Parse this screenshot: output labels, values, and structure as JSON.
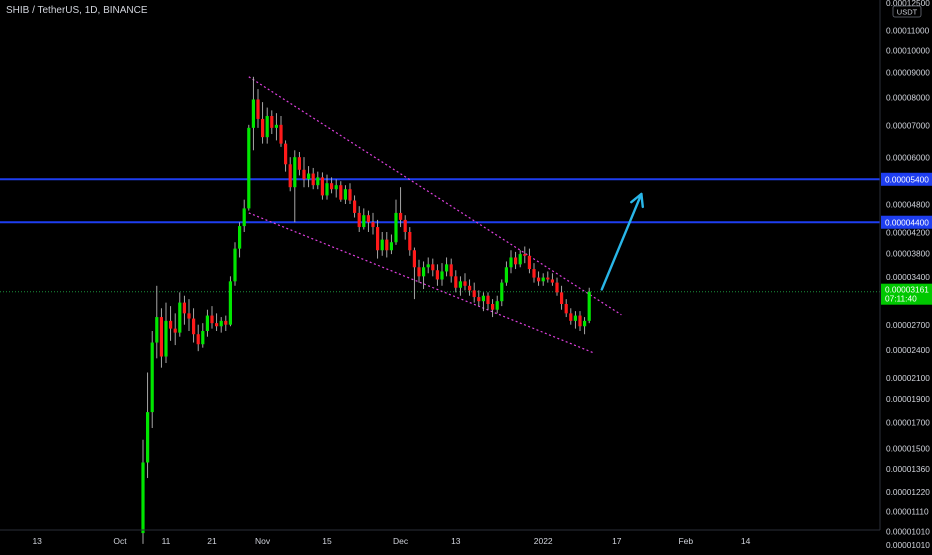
{
  "header": {
    "title": "SHIB / TetherUS, 1D, BINANCE"
  },
  "price_axis": {
    "unit_badge": "USDT",
    "top_partial_label": "0.00012500",
    "ticks": [
      {
        "label": "0.00011000",
        "value": 0.00011
      },
      {
        "label": "0.00010000",
        "value": 0.0001
      },
      {
        "label": "0.00009000",
        "value": 9e-05
      },
      {
        "label": "0.00008000",
        "value": 8e-05
      },
      {
        "label": "0.00007000",
        "value": 7e-05
      },
      {
        "label": "0.00006000",
        "value": 6e-05
      },
      {
        "label": "0.00004800",
        "value": 4.8e-05
      },
      {
        "label": "0.00004200",
        "value": 4.2e-05
      },
      {
        "label": "0.00003800",
        "value": 3.8e-05
      },
      {
        "label": "0.00003400",
        "value": 3.4e-05
      },
      {
        "label": "0.00002700",
        "value": 2.7e-05
      },
      {
        "label": "0.00002400",
        "value": 2.4e-05
      },
      {
        "label": "0.00002100",
        "value": 2.1e-05
      },
      {
        "label": "0.00001900",
        "value": 1.9e-05
      },
      {
        "label": "0.00001700",
        "value": 1.7e-05
      },
      {
        "label": "0.00001500",
        "value": 1.5e-05
      },
      {
        "label": "0.00001360",
        "value": 1.36e-05
      },
      {
        "label": "0.00001220",
        "value": 1.22e-05
      },
      {
        "label": "0.00001110",
        "value": 1.11e-05
      },
      {
        "label": "0.00001010",
        "value": 1.01e-05
      }
    ],
    "bottom_partial_label": "0.00001010"
  },
  "time_axis": {
    "labels": [
      "13",
      "Oct",
      "11",
      "21",
      "Nov",
      "15",
      "Dec",
      "13",
      "2022",
      "17",
      "Feb",
      "14"
    ]
  },
  "colors": {
    "background": "#000000",
    "up": "#00e600",
    "down": "#ff1a1a",
    "wick": "#b8b8b8",
    "level_line": "#1e3ef0",
    "channel": "#e040e0",
    "arrow": "#29b6e8",
    "price_line": "#1a8f3a",
    "current_badge": "#00c800",
    "axis_text": "#d1d4dc"
  },
  "chart_data": {
    "type": "candlestick",
    "title": "SHIB / TetherUS, 1D, BINANCE",
    "scale": "log",
    "y_unit": "USDT",
    "ylim": [
      1.01e-05,
      0.000125
    ],
    "x_range": [
      "2021-09-13",
      "2022-02-20"
    ],
    "series": [
      {
        "ohlc": [
          [
            "2021-10-06",
            1e-05,
            1.56e-05,
            9.5e-06,
            1.4e-05
          ],
          [
            "2021-10-07",
            1.4e-05,
            2.15e-05,
            1.3e-05,
            1.78e-05
          ],
          [
            "2021-10-08",
            1.78e-05,
            2.62e-05,
            1.65e-05,
            2.48e-05
          ],
          [
            "2021-10-09",
            2.48e-05,
            3.25e-05,
            2.3e-05,
            2.8e-05
          ],
          [
            "2021-10-10",
            2.8e-05,
            2.92e-05,
            2.2e-05,
            2.32e-05
          ],
          [
            "2021-10-11",
            2.32e-05,
            3e-05,
            2.25e-05,
            2.75e-05
          ],
          [
            "2021-10-12",
            2.75e-05,
            2.95e-05,
            2.5e-05,
            2.65e-05
          ],
          [
            "2021-10-13",
            2.65e-05,
            2.85e-05,
            2.45e-05,
            2.6e-05
          ],
          [
            "2021-10-14",
            2.6e-05,
            3.15e-05,
            2.55e-05,
            3e-05
          ],
          [
            "2021-10-15",
            3e-05,
            3.1e-05,
            2.7e-05,
            2.85e-05
          ],
          [
            "2021-10-16",
            2.85e-05,
            3.05e-05,
            2.62e-05,
            2.78e-05
          ],
          [
            "2021-10-17",
            2.78e-05,
            2.92e-05,
            2.48e-05,
            2.58e-05
          ],
          [
            "2021-10-18",
            2.58e-05,
            2.7e-05,
            2.38e-05,
            2.46e-05
          ],
          [
            "2021-10-19",
            2.46e-05,
            2.72e-05,
            2.42e-05,
            2.62e-05
          ],
          [
            "2021-10-20",
            2.62e-05,
            2.9e-05,
            2.55e-05,
            2.82e-05
          ],
          [
            "2021-10-21",
            2.82e-05,
            2.95e-05,
            2.65e-05,
            2.72e-05
          ],
          [
            "2021-10-22",
            2.72e-05,
            2.85e-05,
            2.62e-05,
            2.68e-05
          ],
          [
            "2021-10-23",
            2.68e-05,
            2.8e-05,
            2.6e-05,
            2.75e-05
          ],
          [
            "2021-10-24",
            2.75e-05,
            2.82e-05,
            2.62e-05,
            2.7e-05
          ],
          [
            "2021-10-25",
            2.7e-05,
            3.4e-05,
            2.68e-05,
            3.32e-05
          ],
          [
            "2021-10-26",
            3.32e-05,
            4e-05,
            3.25e-05,
            3.88e-05
          ],
          [
            "2021-10-27",
            3.88e-05,
            4.4e-05,
            3.72e-05,
            4.32e-05
          ],
          [
            "2021-10-28",
            4.32e-05,
            4.9e-05,
            4.2e-05,
            4.7e-05
          ],
          [
            "2021-10-29",
            4.7e-05,
            7e-05,
            4.65e-05,
            6.9e-05
          ],
          [
            "2021-10-30",
            6.9e-05,
            8.8e-05,
            6.2e-05,
            7.9e-05
          ],
          [
            "2021-10-31",
            7.9e-05,
            8.3e-05,
            6.9e-05,
            7.2e-05
          ],
          [
            "2021-11-01",
            7.2e-05,
            7.8e-05,
            6.4e-05,
            6.6e-05
          ],
          [
            "2021-11-02",
            6.6e-05,
            7.6e-05,
            6.4e-05,
            7.3e-05
          ],
          [
            "2021-11-03",
            7.3e-05,
            7.5e-05,
            6.7e-05,
            6.9e-05
          ],
          [
            "2021-11-04",
            6.9e-05,
            7.4e-05,
            6.5e-05,
            7e-05
          ],
          [
            "2021-11-05",
            7e-05,
            7.3e-05,
            6.3e-05,
            6.4e-05
          ],
          [
            "2021-11-06",
            6.4e-05,
            6.5e-05,
            5.6e-05,
            5.8e-05
          ],
          [
            "2021-11-07",
            5.8e-05,
            6e-05,
            5.1e-05,
            5.2e-05
          ],
          [
            "2021-11-08",
            5.2e-05,
            6.2e-05,
            4.4e-05,
            6e-05
          ],
          [
            "2021-11-09",
            6e-05,
            6.15e-05,
            5.5e-05,
            5.65e-05
          ],
          [
            "2021-11-10",
            5.65e-05,
            6e-05,
            5.2e-05,
            5.4e-05
          ],
          [
            "2021-11-11",
            5.4e-05,
            5.75e-05,
            5.2e-05,
            5.55e-05
          ],
          [
            "2021-11-12",
            5.55e-05,
            5.7e-05,
            5.15e-05,
            5.25e-05
          ],
          [
            "2021-11-13",
            5.25e-05,
            5.6e-05,
            5.15e-05,
            5.45e-05
          ],
          [
            "2021-11-14",
            5.45e-05,
            5.58e-05,
            4.9e-05,
            5e-05
          ],
          [
            "2021-11-15",
            5e-05,
            5.52e-05,
            4.9e-05,
            5.3e-05
          ],
          [
            "2021-11-16",
            5.3e-05,
            5.45e-05,
            5.05e-05,
            5.15e-05
          ],
          [
            "2021-11-17",
            5.15e-05,
            5.4e-05,
            4.95e-05,
            5.25e-05
          ],
          [
            "2021-11-18",
            5.25e-05,
            5.35e-05,
            4.85e-05,
            4.9e-05
          ],
          [
            "2021-11-19",
            4.9e-05,
            5.25e-05,
            4.8e-05,
            5.15e-05
          ],
          [
            "2021-11-20",
            5.15e-05,
            5.3e-05,
            4.8e-05,
            4.88e-05
          ],
          [
            "2021-11-21",
            4.88e-05,
            5e-05,
            4.5e-05,
            4.6e-05
          ],
          [
            "2021-11-22",
            4.6e-05,
            4.75e-05,
            4.2e-05,
            4.3e-05
          ],
          [
            "2021-11-23",
            4.3e-05,
            4.7e-05,
            4.25e-05,
            4.55e-05
          ],
          [
            "2021-11-24",
            4.55e-05,
            4.65e-05,
            4.2e-05,
            4.4e-05
          ],
          [
            "2021-11-25",
            4.4e-05,
            4.6e-05,
            4.15e-05,
            4.3e-05
          ],
          [
            "2021-11-26",
            4.3e-05,
            4.45e-05,
            3.7e-05,
            3.85e-05
          ],
          [
            "2021-11-27",
            3.85e-05,
            4.2e-05,
            3.75e-05,
            4.05e-05
          ],
          [
            "2021-11-28",
            4.05e-05,
            4.2e-05,
            3.72e-05,
            3.85e-05
          ],
          [
            "2021-11-29",
            3.85e-05,
            4.15e-05,
            3.78e-05,
            4e-05
          ],
          [
            "2021-11-30",
            4e-05,
            4.9e-05,
            3.95e-05,
            4.6e-05
          ],
          [
            "2021-12-01",
            4.6e-05,
            5.2e-05,
            4.3e-05,
            4.45e-05
          ],
          [
            "2021-12-02",
            4.45e-05,
            4.55e-05,
            4.05e-05,
            4.2e-05
          ],
          [
            "2021-12-03",
            4.2e-05,
            4.3e-05,
            3.75e-05,
            3.85e-05
          ],
          [
            "2021-12-04",
            3.85e-05,
            3.9e-05,
            3.05e-05,
            3.55e-05
          ],
          [
            "2021-12-05",
            3.55e-05,
            3.68e-05,
            3.3e-05,
            3.4e-05
          ],
          [
            "2021-12-06",
            3.4e-05,
            3.65e-05,
            3.2e-05,
            3.55e-05
          ],
          [
            "2021-12-07",
            3.55e-05,
            3.72e-05,
            3.45e-05,
            3.6e-05
          ],
          [
            "2021-12-08",
            3.6e-05,
            3.7e-05,
            3.4e-05,
            3.5e-05
          ],
          [
            "2021-12-09",
            3.5e-05,
            3.6e-05,
            3.25e-05,
            3.35e-05
          ],
          [
            "2021-12-10",
            3.35e-05,
            3.62e-05,
            3.25e-05,
            3.48e-05
          ],
          [
            "2021-12-11",
            3.48e-05,
            3.72e-05,
            3.4e-05,
            3.6e-05
          ],
          [
            "2021-12-12",
            3.6e-05,
            3.7e-05,
            3.3e-05,
            3.4e-05
          ],
          [
            "2021-12-13",
            3.4e-05,
            3.5e-05,
            3.15e-05,
            3.22e-05
          ],
          [
            "2021-12-14",
            3.22e-05,
            3.4e-05,
            3.1e-05,
            3.32e-05
          ],
          [
            "2021-12-15",
            3.32e-05,
            3.45e-05,
            3.18e-05,
            3.25e-05
          ],
          [
            "2021-12-16",
            3.25e-05,
            3.35e-05,
            3.1e-05,
            3.18e-05
          ],
          [
            "2021-12-17",
            3.18e-05,
            3.3e-05,
            3e-05,
            3.08e-05
          ],
          [
            "2021-12-18",
            3.08e-05,
            3.18e-05,
            2.95e-05,
            3.02e-05
          ],
          [
            "2021-12-19",
            3.02e-05,
            3.15e-05,
            2.88e-05,
            3.1e-05
          ],
          [
            "2021-12-20",
            3.1e-05,
            3.15e-05,
            2.9e-05,
            2.98e-05
          ],
          [
            "2021-12-21",
            2.98e-05,
            3.05e-05,
            2.8e-05,
            2.9e-05
          ],
          [
            "2021-12-22",
            2.9e-05,
            3.1e-05,
            2.85e-05,
            3.02e-05
          ],
          [
            "2021-12-23",
            3.02e-05,
            3.35e-05,
            2.95e-05,
            3.3e-05
          ],
          [
            "2021-12-24",
            3.3e-05,
            3.65e-05,
            3.25e-05,
            3.55e-05
          ],
          [
            "2021-12-25",
            3.55e-05,
            3.85e-05,
            3.45e-05,
            3.72e-05
          ],
          [
            "2021-12-26",
            3.72e-05,
            3.82e-05,
            3.52e-05,
            3.6e-05
          ],
          [
            "2021-12-27",
            3.6e-05,
            3.85e-05,
            3.55e-05,
            3.78e-05
          ],
          [
            "2021-12-28",
            3.78e-05,
            3.92e-05,
            3.62e-05,
            3.75e-05
          ],
          [
            "2021-12-29",
            3.75e-05,
            3.88e-05,
            3.45e-05,
            3.52e-05
          ],
          [
            "2021-12-30",
            3.52e-05,
            3.62e-05,
            3.3e-05,
            3.38e-05
          ],
          [
            "2021-12-31",
            3.38e-05,
            3.48e-05,
            3.25e-05,
            3.32e-05
          ],
          [
            "2022-01-01",
            3.32e-05,
            3.45e-05,
            3.25e-05,
            3.38e-05
          ],
          [
            "2022-01-02",
            3.38e-05,
            3.48e-05,
            3.3e-05,
            3.35e-05
          ],
          [
            "2022-01-03",
            3.35e-05,
            3.45e-05,
            3.25e-05,
            3.3e-05
          ],
          [
            "2022-01-04",
            3.3e-05,
            3.38e-05,
            3.1e-05,
            3.15e-05
          ],
          [
            "2022-01-05",
            3.15e-05,
            3.25e-05,
            2.9e-05,
            2.98e-05
          ],
          [
            "2022-01-06",
            2.98e-05,
            3.05e-05,
            2.8e-05,
            2.85e-05
          ],
          [
            "2022-01-07",
            2.85e-05,
            2.92e-05,
            2.7e-05,
            2.75e-05
          ],
          [
            "2022-01-08",
            2.75e-05,
            2.88e-05,
            2.65e-05,
            2.82e-05
          ],
          [
            "2022-01-09",
            2.82e-05,
            2.88e-05,
            2.62e-05,
            2.68e-05
          ],
          [
            "2022-01-10",
            2.68e-05,
            2.8e-05,
            2.58e-05,
            2.75e-05
          ],
          [
            "2022-01-11",
            2.75e-05,
            3.22e-05,
            2.72e-05,
            3.16e-05
          ]
        ]
      }
    ],
    "horizontal_levels": [
      {
        "label": "0.00005400",
        "value": 5.4e-05
      },
      {
        "label": "0.00004400",
        "value": 4.4e-05
      }
    ],
    "current_price": {
      "label": "0.00003161",
      "value": 3.16e-05,
      "countdown": "07:11:40"
    },
    "channel": {
      "upper": [
        [
          "2021-10-29",
          8.8e-05
        ],
        [
          "2022-01-18",
          2.83e-05
        ]
      ],
      "lower": [
        [
          "2021-10-29",
          4.6e-05
        ],
        [
          "2022-01-12",
          2.36e-05
        ]
      ]
    },
    "projection_arrow": {
      "from": [
        "2022-01-12",
        3.35e-05
      ],
      "to": [
        "2022-01-18",
        4.8e-05
      ]
    }
  }
}
